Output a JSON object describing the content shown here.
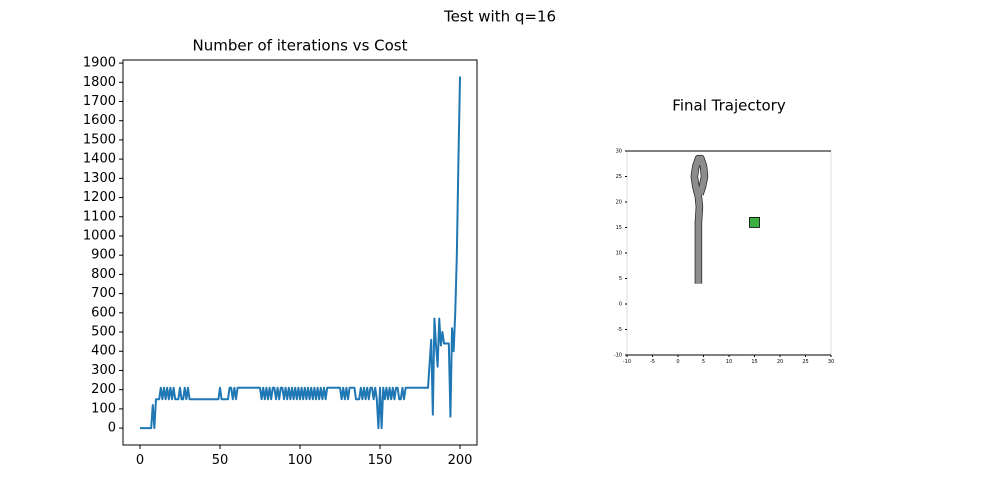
{
  "title": "Test with q=16",
  "chart_data": [
    {
      "type": "line",
      "title": "Number of iterations vs Cost",
      "grid": false,
      "xlim": [
        -10.6,
        210.6
      ],
      "ylim": [
        -88,
        1916
      ],
      "xticks": [
        0,
        50,
        100,
        150,
        200
      ],
      "yticks": [
        0,
        100,
        200,
        300,
        400,
        500,
        600,
        700,
        800,
        900,
        1000,
        1100,
        1200,
        1300,
        1400,
        1500,
        1600,
        1700,
        1800,
        1900
      ],
      "series": [
        {
          "color": "#1f77b4",
          "x": [
            0,
            7,
            8,
            9,
            10,
            11,
            12,
            13,
            14,
            15,
            16,
            17,
            18,
            19,
            20,
            21,
            22,
            23,
            24,
            25,
            26,
            27,
            28,
            29,
            30,
            31,
            49,
            50,
            51,
            55,
            56,
            57,
            58,
            59,
            60,
            61,
            62,
            75,
            76,
            77,
            78,
            79,
            80,
            81,
            82,
            83,
            84,
            85,
            86,
            87,
            88,
            89,
            90,
            91,
            92,
            93,
            94,
            95,
            96,
            97,
            98,
            99,
            100,
            101,
            102,
            103,
            104,
            105,
            106,
            107,
            108,
            109,
            110,
            111,
            112,
            113,
            114,
            115,
            116,
            117,
            118,
            125,
            126,
            127,
            128,
            129,
            130,
            131,
            134,
            135,
            136,
            137,
            138,
            139,
            140,
            141,
            142,
            143,
            144,
            145,
            146,
            147,
            148,
            149,
            150,
            151,
            152,
            153,
            154,
            155,
            156,
            157,
            158,
            159,
            160,
            161,
            162,
            163,
            164,
            165,
            166,
            180,
            181,
            182,
            183,
            184,
            185,
            186,
            187,
            188,
            189,
            190,
            191,
            192,
            193,
            194,
            195,
            196,
            197,
            198,
            199,
            200
          ],
          "values": [
            0,
            0,
            120,
            0,
            150,
            150,
            150,
            210,
            150,
            210,
            150,
            210,
            150,
            210,
            150,
            210,
            150,
            150,
            150,
            210,
            150,
            150,
            210,
            150,
            210,
            150,
            150,
            210,
            150,
            150,
            210,
            210,
            150,
            210,
            150,
            210,
            210,
            210,
            150,
            210,
            150,
            210,
            150,
            210,
            150,
            210,
            210,
            150,
            210,
            150,
            210,
            210,
            150,
            210,
            150,
            210,
            150,
            210,
            150,
            210,
            150,
            210,
            150,
            210,
            150,
            210,
            150,
            210,
            150,
            210,
            150,
            210,
            150,
            210,
            150,
            210,
            150,
            210,
            150,
            210,
            210,
            210,
            150,
            210,
            150,
            210,
            150,
            210,
            210,
            150,
            150,
            150,
            210,
            150,
            210,
            150,
            210,
            150,
            210,
            210,
            150,
            210,
            150,
            0,
            210,
            0,
            210,
            150,
            210,
            150,
            210,
            150,
            210,
            150,
            210,
            210,
            150,
            150,
            210,
            150,
            210,
            210,
            340,
            460,
            70,
            570,
            430,
            320,
            570,
            430,
            500,
            440,
            440,
            440,
            440,
            60,
            520,
            400,
            600,
            900,
            1400,
            1830
          ]
        }
      ]
    },
    {
      "type": "line",
      "title": "Final Trajectory",
      "grid": false,
      "xlim": [
        -10,
        30
      ],
      "ylim": [
        -10,
        30
      ],
      "xticks": [
        -10,
        -5,
        0,
        5,
        10,
        15,
        20,
        25,
        30
      ],
      "yticks": [
        -10,
        -5,
        0,
        5,
        10,
        15,
        20,
        25,
        30
      ],
      "series": [
        {
          "color": "#8c8c8c",
          "x": [
            4,
            4,
            4,
            4,
            4.2,
            4,
            3.5,
            3.2,
            3.5,
            4,
            4.5,
            5,
            5.2,
            4.8,
            4.3
          ],
          "values": [
            4,
            8,
            12,
            16,
            19,
            21,
            23,
            25,
            27,
            28.5,
            28.5,
            27,
            25,
            23,
            21.5
          ]
        },
        {
          "color": "#3cb043",
          "marker": "square",
          "x": [
            15
          ],
          "values": [
            16
          ]
        }
      ]
    }
  ]
}
